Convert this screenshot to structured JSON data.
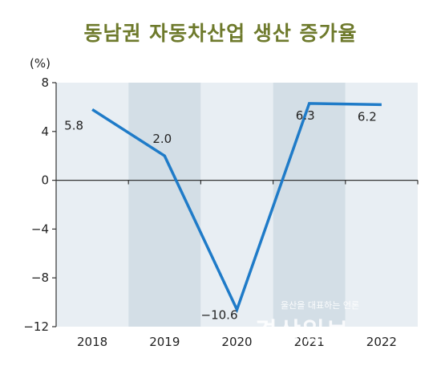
{
  "colors": {
    "title": "#6e7a2c",
    "line": "#1f7bc8",
    "band_light": "#e8eef3",
    "band_dark": "#d3dee6",
    "axis": "#333333"
  },
  "chart_data": {
    "type": "line",
    "title": "동남권 자동차산업 생산 증가율",
    "unit_label": "(%)",
    "categories": [
      "2018",
      "2019",
      "2020",
      "2021",
      "2022"
    ],
    "values": [
      5.8,
      2.0,
      -10.6,
      6.3,
      6.2
    ],
    "value_labels": [
      "5.8",
      "2.0",
      "−10.6",
      "6.3",
      "6.2"
    ],
    "y_ticks": [
      8,
      4,
      0,
      -4,
      -8,
      -12
    ],
    "y_tick_labels": [
      "8",
      "4",
      "0",
      "−4",
      "−8",
      "−12"
    ],
    "ylim": [
      -12,
      8
    ],
    "grid": false,
    "legend": "none"
  },
  "watermark": {
    "tagline": "울산을 대표하는 언론",
    "brand": "경상일보"
  }
}
